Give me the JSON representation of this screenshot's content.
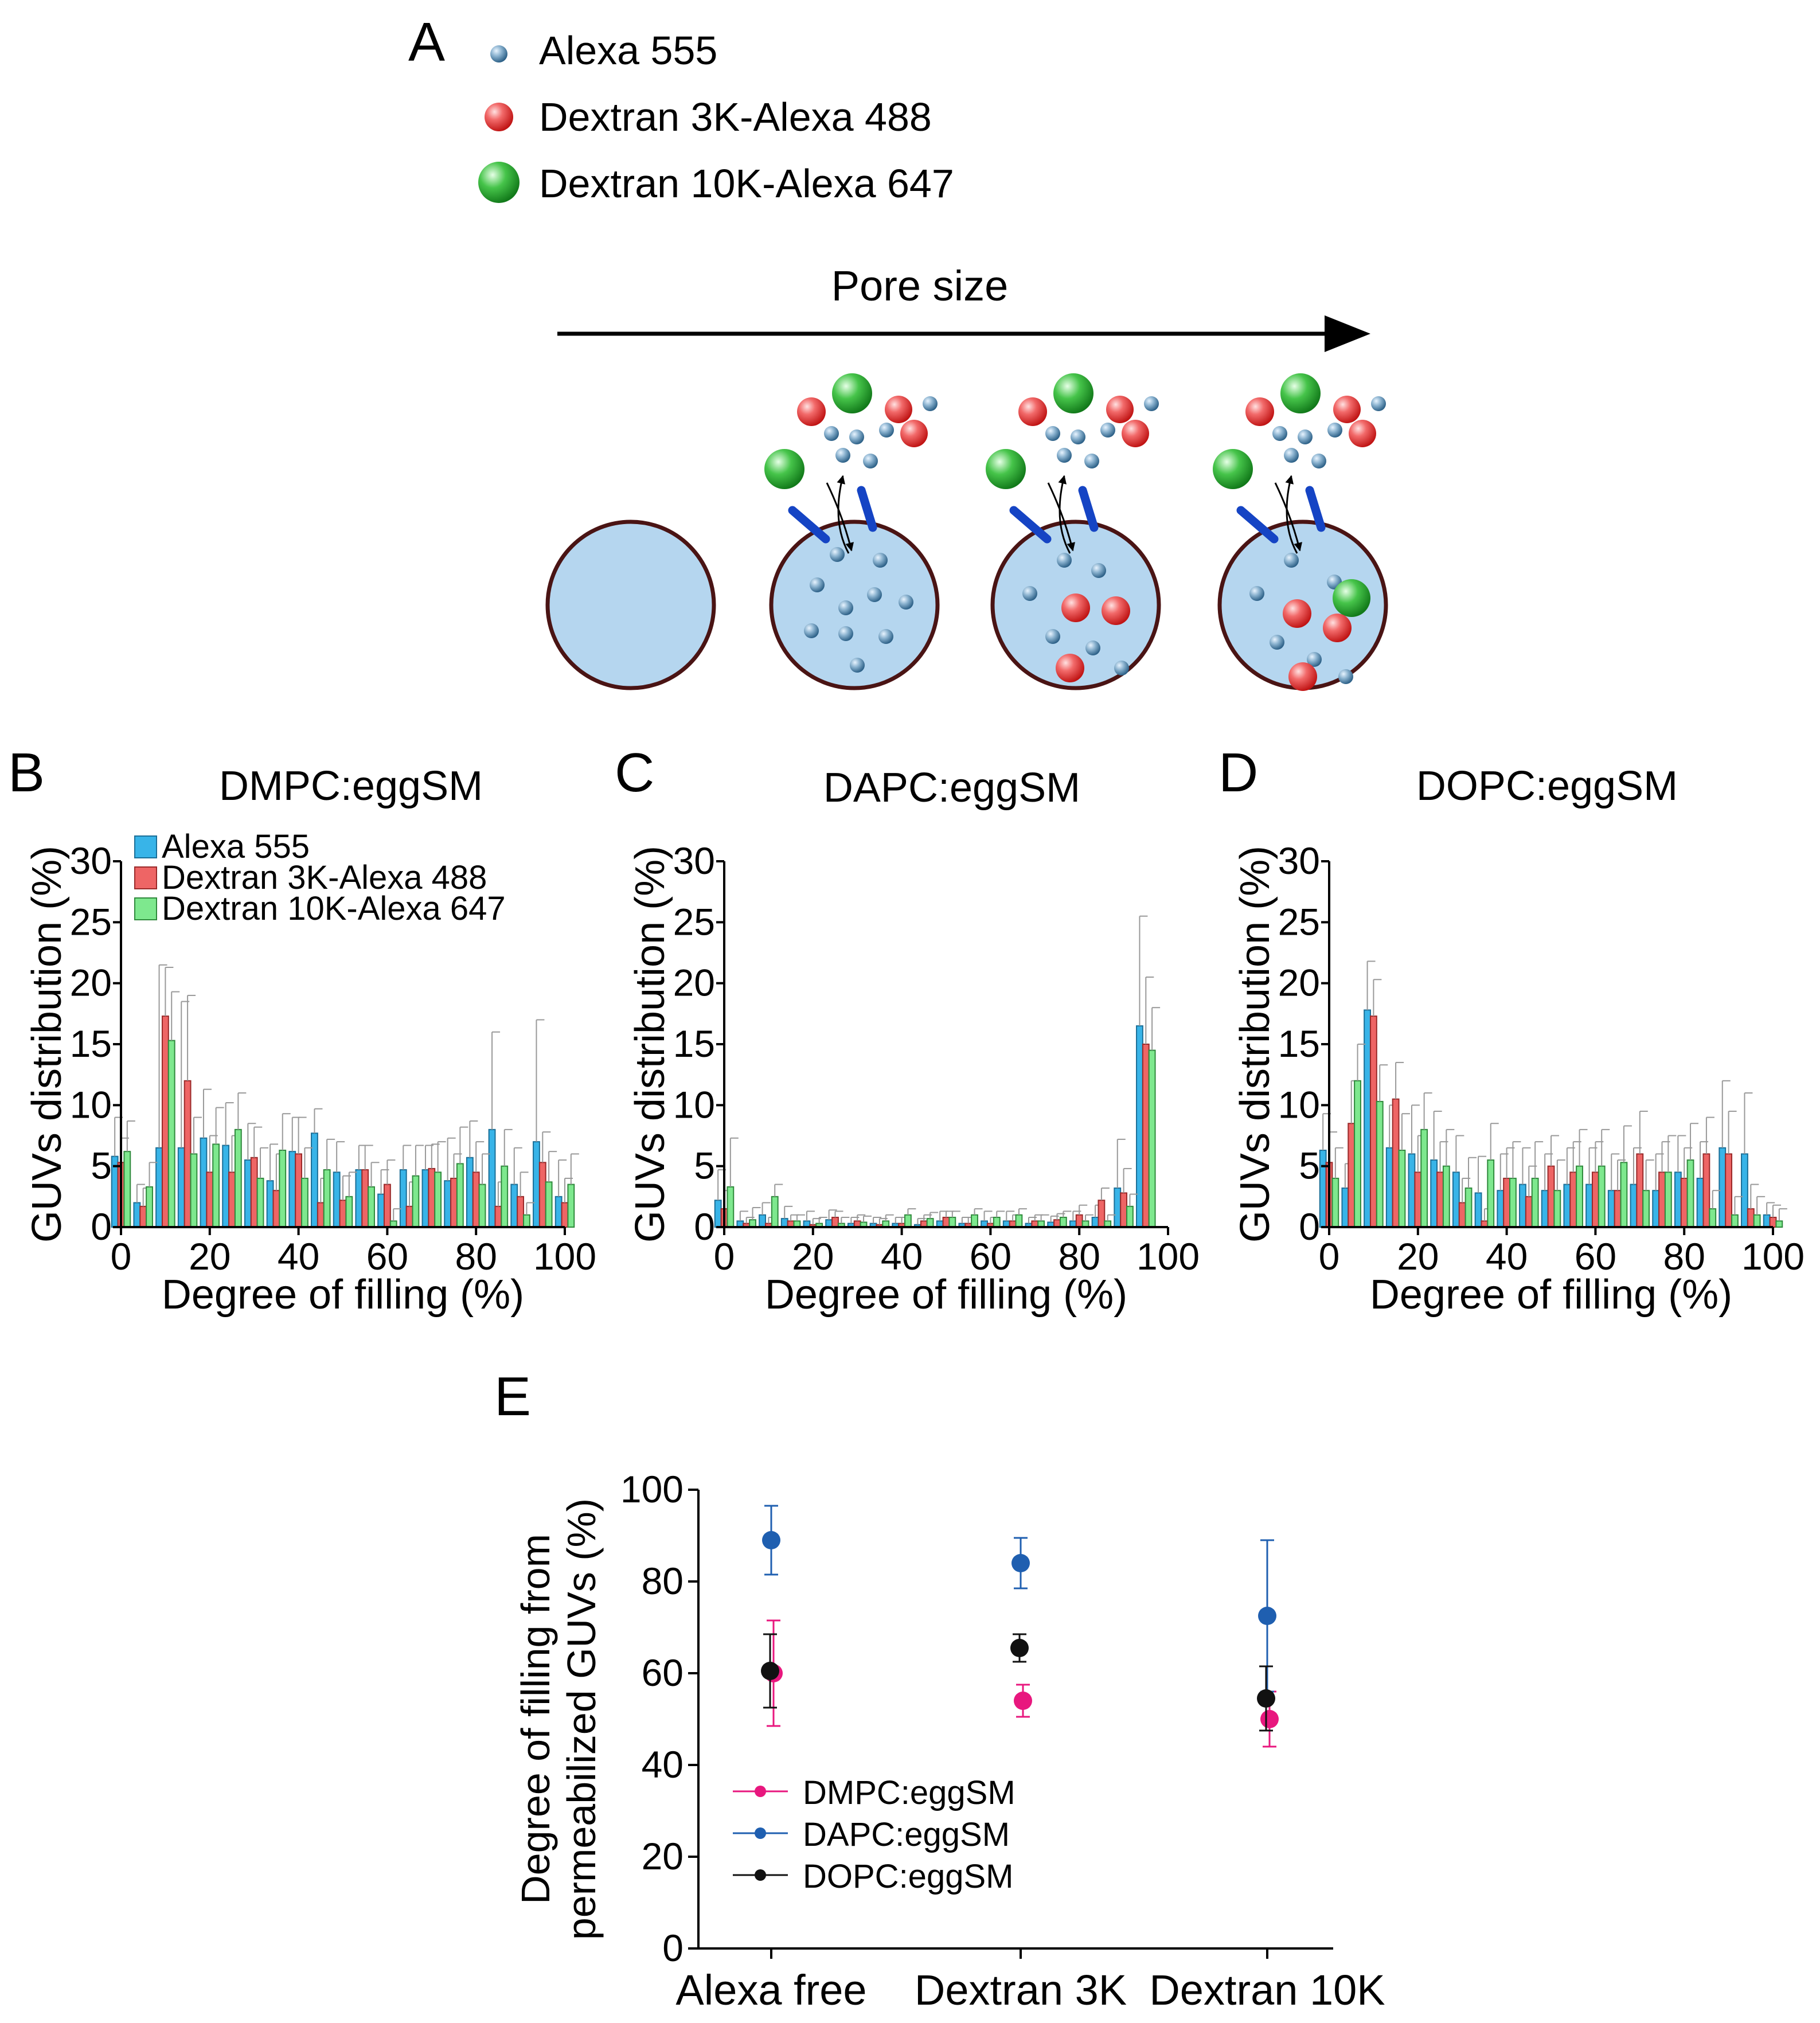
{
  "colors": {
    "alexa555": "#38b4e8",
    "dextran3k": "#ee6565",
    "dextran10k": "#7ee88e",
    "dmpc": "#e8177e",
    "dapc": "#1f5fb0",
    "dope": "#111111",
    "gvu_fill": "#b5d6ef",
    "gvu_border": "#4a1414",
    "peptide": "#1544c4"
  },
  "panel_a": {
    "letter": "A",
    "legend": [
      {
        "label": "Alexa 555",
        "icon": "small-blue-sphere-icon"
      },
      {
        "label": "Dextran 3K-Alexa 488",
        "icon": "red-sphere-icon"
      },
      {
        "label": "Dextran 10K-Alexa 647",
        "icon": "green-sphere-icon"
      }
    ],
    "arrow_label": "Pore size"
  },
  "histograms": [
    {
      "letter": "B",
      "title": "DMPC:eggSM",
      "legend": [
        "Alexa 555",
        "Dextran 3K-Alexa 488",
        "Dextran 10K-Alexa 647"
      ],
      "chart_ref": 0
    },
    {
      "letter": "C",
      "title": "DAPC:eggSM",
      "chart_ref": 1
    },
    {
      "letter": "D",
      "title": "DOPC:eggSM",
      "chart_ref": 2
    }
  ],
  "panel_e": {
    "letter": "E",
    "chart_ref": 3
  },
  "chart_data": [
    {
      "type": "bar",
      "title": "DMPC:eggSM",
      "xlabel": "Degree of filling (%)",
      "ylabel": "GUVs distribution (%)",
      "xlim": [
        0,
        100
      ],
      "ylim": [
        0,
        30
      ],
      "xticks": [
        0,
        20,
        40,
        60,
        80,
        100
      ],
      "yticks": [
        0,
        5,
        10,
        15,
        20,
        25,
        30
      ],
      "x": [
        0,
        5,
        10,
        15,
        20,
        25,
        30,
        35,
        40,
        45,
        50,
        55,
        60,
        65,
        70,
        75,
        80,
        85,
        90,
        95,
        100
      ],
      "series": [
        {
          "name": "Alexa 555",
          "values": [
            5.8,
            2.0,
            6.5,
            6.5,
            7.3,
            6.7,
            5.5,
            3.8,
            6.2,
            7.7,
            4.5,
            4.7,
            2.7,
            4.7,
            4.7,
            3.8,
            5.7,
            8.0,
            3.5,
            7.0,
            2.5
          ],
          "errors": [
            3.2,
            1.5,
            15.0,
            12.0,
            4.0,
            3.5,
            3.0,
            3.0,
            2.8,
            2.0,
            2.5,
            2.0,
            2.0,
            2.0,
            2.0,
            3.5,
            3.0,
            8.0,
            3.0,
            10.0,
            3.0
          ]
        },
        {
          "name": "Dextran 3K-Alexa 488",
          "values": [
            5.3,
            1.7,
            17.3,
            12.0,
            4.5,
            4.5,
            5.7,
            3.0,
            6.0,
            2.0,
            2.2,
            4.7,
            3.5,
            1.7,
            4.8,
            4.0,
            4.5,
            1.7,
            2.5,
            5.3,
            2.0
          ],
          "errors": [
            2.0,
            1.5,
            4.0,
            7.0,
            3.0,
            3.0,
            2.5,
            3.0,
            3.0,
            2.0,
            2.0,
            2.0,
            2.0,
            2.0,
            2.0,
            2.0,
            2.5,
            2.0,
            2.0,
            2.5,
            2.0
          ]
        },
        {
          "name": "Dextran 10K-Alexa 647",
          "values": [
            6.2,
            3.3,
            15.3,
            6.0,
            6.8,
            8.0,
            4.0,
            6.3,
            4.0,
            4.7,
            2.5,
            3.3,
            0.5,
            4.2,
            4.5,
            5.2,
            3.5,
            5.0,
            1.0,
            3.7,
            3.5
          ],
          "errors": [
            2.5,
            2.0,
            4.0,
            3.0,
            3.0,
            3.0,
            2.5,
            3.0,
            2.5,
            2.5,
            2.0,
            2.0,
            1.0,
            2.5,
            2.5,
            3.0,
            2.5,
            3.0,
            1.0,
            2.5,
            2.5
          ]
        }
      ]
    },
    {
      "type": "bar",
      "title": "DAPC:eggSM",
      "xlabel": "Degree of filling (%)",
      "ylabel": "GUVs distribution (%)",
      "xlim": [
        0,
        100
      ],
      "ylim": [
        0,
        30
      ],
      "xticks": [
        0,
        20,
        40,
        60,
        80,
        100
      ],
      "yticks": [
        0,
        5,
        10,
        15,
        20,
        25,
        30
      ],
      "x": [
        0,
        5,
        10,
        15,
        20,
        25,
        30,
        35,
        40,
        45,
        50,
        55,
        60,
        65,
        70,
        75,
        80,
        85,
        90,
        95,
        100
      ],
      "series": [
        {
          "name": "Alexa 555",
          "values": [
            2.2,
            0.5,
            1.0,
            0.7,
            0.5,
            0.6,
            0.3,
            0.3,
            0.3,
            0.2,
            0.5,
            0.3,
            0.5,
            0.5,
            0.3,
            0.4,
            0.5,
            0.8,
            3.2,
            16.5,
            0.0
          ],
          "errors": [
            2.5,
            0.8,
            1.0,
            1.0,
            0.8,
            0.8,
            0.5,
            0.5,
            0.5,
            0.5,
            0.8,
            0.5,
            0.8,
            0.8,
            0.5,
            0.5,
            0.8,
            1.0,
            4.0,
            9.0,
            0.0
          ]
        },
        {
          "name": "Dextran 3K-Alexa 488",
          "values": [
            1.5,
            0.3,
            0.3,
            0.5,
            0.2,
            0.8,
            0.5,
            0.2,
            0.3,
            0.5,
            0.8,
            0.3,
            0.3,
            0.5,
            0.5,
            0.6,
            1.0,
            2.2,
            2.8,
            15.0,
            0.0
          ],
          "errors": [
            1.5,
            0.5,
            0.5,
            0.5,
            0.5,
            0.5,
            0.5,
            0.5,
            0.5,
            0.5,
            0.5,
            0.5,
            0.5,
            0.5,
            0.5,
            0.5,
            0.8,
            1.0,
            2.0,
            5.5,
            0.0
          ]
        },
        {
          "name": "Dextran 10K-Alexa 647",
          "values": [
            3.3,
            0.6,
            2.5,
            0.5,
            0.3,
            0.3,
            0.4,
            0.5,
            1.0,
            0.7,
            0.8,
            1.0,
            0.8,
            1.0,
            0.5,
            0.8,
            0.5,
            0.5,
            1.7,
            14.5,
            0.0
          ],
          "errors": [
            4.0,
            1.0,
            1.0,
            0.5,
            0.5,
            0.5,
            0.5,
            0.5,
            0.5,
            0.5,
            0.5,
            0.5,
            0.5,
            0.5,
            0.5,
            0.5,
            0.5,
            0.5,
            1.0,
            3.5,
            0.0
          ]
        }
      ]
    },
    {
      "type": "bar",
      "title": "DOPC:eggSM",
      "xlabel": "Degree of filling (%)",
      "ylabel": "GUVs distribution (%)",
      "xlim": [
        0,
        100
      ],
      "ylim": [
        0,
        30
      ],
      "xticks": [
        0,
        20,
        40,
        60,
        80,
        100
      ],
      "yticks": [
        0,
        5,
        10,
        15,
        20,
        25,
        30
      ],
      "x": [
        0,
        5,
        10,
        15,
        20,
        25,
        30,
        35,
        40,
        45,
        50,
        55,
        60,
        65,
        70,
        75,
        80,
        85,
        90,
        95,
        100
      ],
      "series": [
        {
          "name": "Alexa 555",
          "values": [
            6.3,
            3.2,
            17.8,
            6.5,
            6.0,
            5.5,
            4.5,
            2.8,
            3.0,
            3.5,
            3.0,
            3.5,
            3.5,
            3.0,
            3.5,
            3.0,
            4.5,
            4.0,
            6.5,
            6.0,
            1.0
          ],
          "errors": [
            3.0,
            2.0,
            4.0,
            3.5,
            4.0,
            4.0,
            3.0,
            3.0,
            3.0,
            3.0,
            3.0,
            3.0,
            3.0,
            3.0,
            3.0,
            3.0,
            3.0,
            3.0,
            5.5,
            5.0,
            1.0
          ]
        },
        {
          "name": "Dextran 3K-Alexa 488",
          "values": [
            5.3,
            8.5,
            17.3,
            10.5,
            4.5,
            4.5,
            2.0,
            0.5,
            4.0,
            2.5,
            5.0,
            4.5,
            4.5,
            3.0,
            6.0,
            4.5,
            4.0,
            6.0,
            6.0,
            1.5,
            0.8
          ],
          "errors": [
            2.5,
            3.5,
            3.0,
            3.0,
            3.0,
            2.5,
            2.0,
            1.0,
            2.5,
            2.5,
            2.5,
            2.5,
            2.5,
            2.5,
            3.5,
            2.5,
            2.5,
            3.0,
            3.5,
            2.0,
            1.0
          ]
        },
        {
          "name": "Dextran 10K-Alexa 647",
          "values": [
            4.0,
            12.0,
            10.3,
            6.3,
            8.0,
            5.0,
            3.2,
            5.5,
            4.0,
            4.0,
            3.0,
            5.0,
            5.0,
            5.3,
            3.0,
            4.5,
            5.5,
            1.5,
            1.0,
            1.0,
            0.5
          ],
          "errors": [
            2.5,
            3.0,
            3.0,
            3.0,
            3.0,
            3.0,
            2.5,
            3.0,
            3.0,
            3.0,
            2.5,
            3.0,
            3.0,
            3.0,
            2.5,
            3.0,
            3.0,
            1.5,
            1.5,
            1.5,
            1.0
          ]
        }
      ]
    },
    {
      "type": "scatter",
      "xlabel": "",
      "ylabel_line1": "Degree of filling from",
      "ylabel_line2": "permeabilized GUVs (%)",
      "ylim": [
        0,
        100
      ],
      "yticks": [
        0,
        20,
        40,
        60,
        80,
        100
      ],
      "categories": [
        "Alexa free",
        "Dextran 3K",
        "Dextran 10K"
      ],
      "legend_position": "bottom-left",
      "series": [
        {
          "name": "DMPC:eggSM",
          "values": [
            60,
            54,
            50
          ],
          "errors": [
            11.5,
            3.5,
            6.0
          ],
          "color_key": "dmpc"
        },
        {
          "name": "DAPC:eggSM",
          "values": [
            89,
            84,
            72.5
          ],
          "errors": [
            7.5,
            5.5,
            16.5
          ],
          "color_key": "dapc"
        },
        {
          "name": "DOPC:eggSM",
          "values": [
            60.5,
            65.5,
            54.5
          ],
          "errors": [
            8.0,
            3.0,
            7.0
          ],
          "color_key": "dope"
        }
      ]
    }
  ]
}
